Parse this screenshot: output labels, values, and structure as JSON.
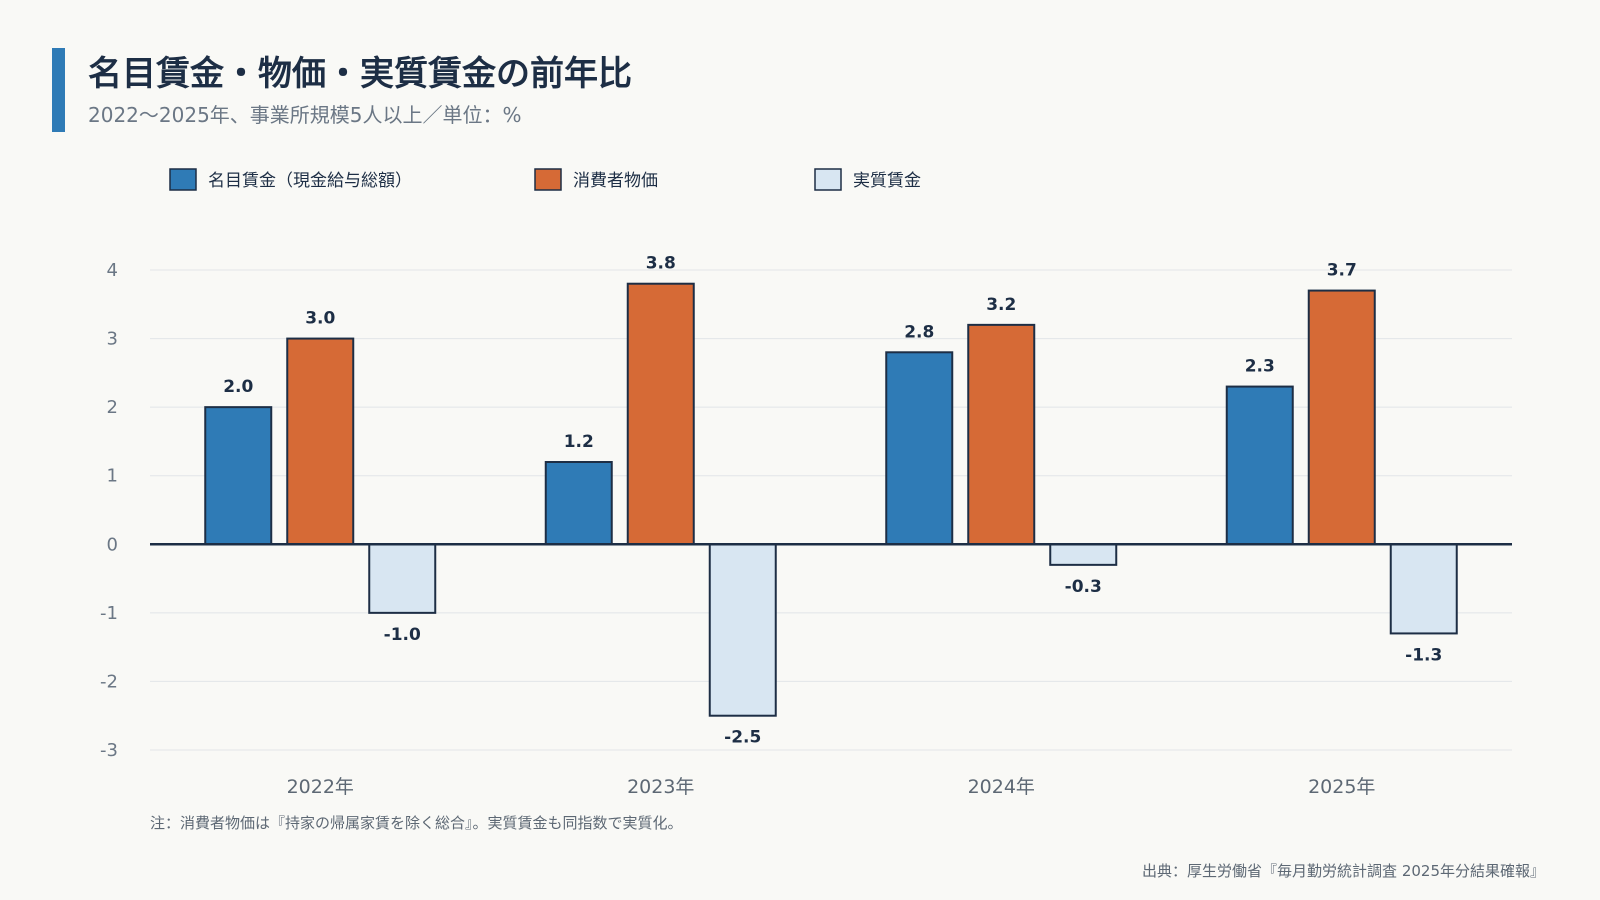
{
  "title": "名目賃金・物価・実質賃金の前年比",
  "subtitle": "2022〜2025年、事業所規模5人以上／単位：%",
  "note": "注：消費者物価は『持家の帰属家賃を除く総合』。実質賃金も同指数で実質化。",
  "source": "出典：厚生労働省『毎月勤労統計調査 2025年分結果確報』",
  "chart_data": {
    "type": "bar",
    "categories": [
      "2022年",
      "2023年",
      "2024年",
      "2025年"
    ],
    "series": [
      {
        "name": "名目賃金（現金給与総額）",
        "color": "#2f7bb6",
        "values": [
          2.0,
          1.2,
          2.8,
          2.3
        ]
      },
      {
        "name": "消費者物価",
        "color": "#d66a36",
        "values": [
          3.0,
          3.8,
          3.2,
          3.7
        ]
      },
      {
        "name": "実質賃金",
        "color": "#d8e6f2",
        "values": [
          -1.0,
          -2.5,
          -0.3,
          -1.3
        ]
      }
    ],
    "y_ticks": [
      4,
      3,
      2,
      1,
      0,
      -1,
      -2,
      -3
    ],
    "ylim": [
      -3,
      4
    ],
    "grid": true,
    "legend_position": "top-left",
    "data_labels": true
  }
}
